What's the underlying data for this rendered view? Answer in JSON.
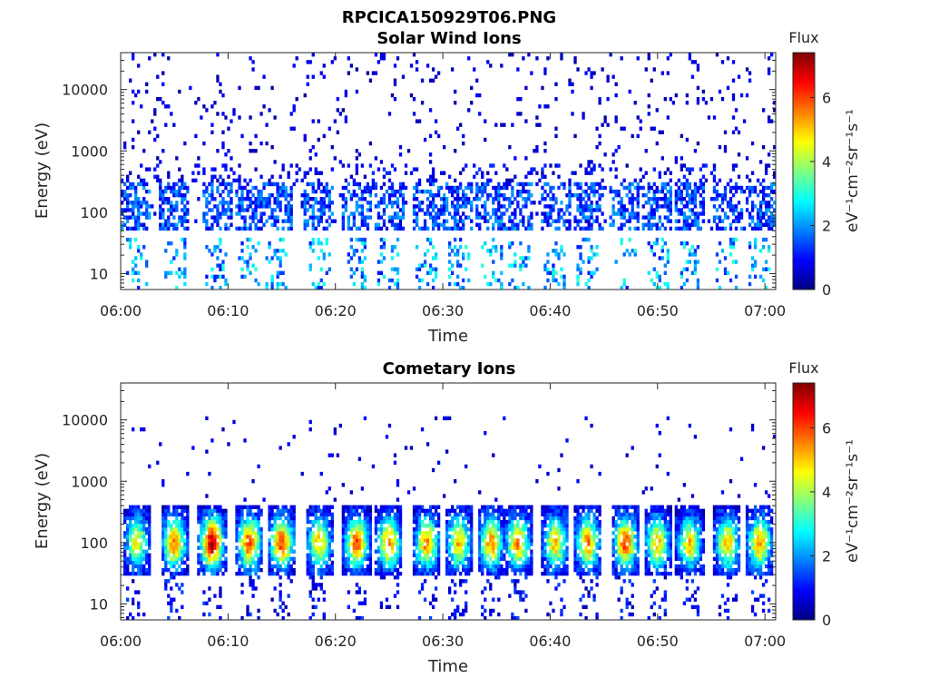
{
  "figure": {
    "title": "RPCICA150929T06.PNG"
  },
  "chart_data": [
    {
      "type": "heatmap",
      "title": "Solar Wind Ions",
      "xlabel": "Time",
      "ylabel": "Energy (eV)",
      "x_range": [
        "06:00",
        "07:01"
      ],
      "x_ticks": [
        "06:00",
        "06:10",
        "06:20",
        "06:30",
        "06:40",
        "06:50",
        "07:00"
      ],
      "y_scale": "log",
      "y_range": [
        5.5,
        40000
      ],
      "y_ticks": [
        {
          "value": 10,
          "label": "10"
        },
        {
          "value": 100,
          "label": "100"
        },
        {
          "value": 1000,
          "label": "1000"
        },
        {
          "value": 10000,
          "label": "10000"
        }
      ],
      "colorbar": {
        "title": "Flux",
        "label": "eV⁻¹cm⁻²sr⁻¹s⁻¹",
        "range": [
          0,
          7.4
        ],
        "ticks": [
          "0",
          "2",
          "4",
          "6"
        ],
        "colormap": "jet"
      },
      "bursts_minutes": [
        1.5,
        5,
        9,
        12,
        14.5,
        18.5,
        22,
        25,
        28.5,
        31.5,
        34.5,
        37,
        40.5,
        43.5,
        47,
        50,
        53,
        56.5,
        59.5
      ],
      "core_energy_range_eV": [
        50,
        300
      ],
      "core_flux_typical": [
        0.8,
        2.0
      ],
      "low_energy_spikes_flux": [
        2.5,
        3.2
      ]
    },
    {
      "type": "heatmap",
      "title": "Cometary Ions",
      "xlabel": "Time",
      "ylabel": "Energy (eV)",
      "x_range": [
        "06:00",
        "07:01"
      ],
      "x_ticks": [
        "06:00",
        "06:10",
        "06:20",
        "06:30",
        "06:40",
        "06:50",
        "07:00"
      ],
      "y_scale": "log",
      "y_range": [
        5.5,
        40000
      ],
      "y_ticks": [
        {
          "value": 10,
          "label": "10"
        },
        {
          "value": 100,
          "label": "100"
        },
        {
          "value": 1000,
          "label": "1000"
        },
        {
          "value": 10000,
          "label": "10000"
        }
      ],
      "colorbar": {
        "title": "Flux",
        "label": "eV⁻¹cm⁻²sr⁻¹s⁻¹",
        "range": [
          0,
          7.4
        ],
        "ticks": [
          "0",
          "2",
          "4",
          "6"
        ],
        "colormap": "jet"
      },
      "bursts_minutes": [
        1.5,
        5,
        8.5,
        12,
        15,
        18.5,
        22,
        25,
        28.5,
        31.5,
        34.5,
        37,
        40.5,
        43.5,
        47,
        50,
        53,
        56.5,
        59.5
      ],
      "burst_peak_flux": [
        4,
        5,
        6.5,
        5.5,
        5.5,
        4.5,
        5.5,
        5,
        5,
        4.5,
        5,
        5,
        4.5,
        5,
        5.5,
        4.5,
        4.5,
        4.5,
        5
      ],
      "core_energy_range_eV": [
        30,
        400
      ],
      "peak_energy_eV": 100,
      "sparse_high_energy_flux": [
        0.3,
        1.0
      ]
    }
  ]
}
